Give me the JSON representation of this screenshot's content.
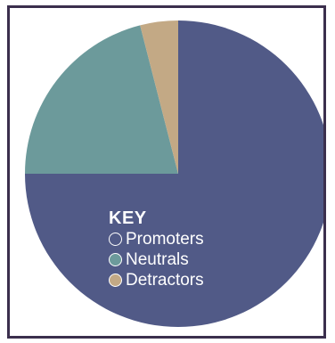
{
  "chart_data": {
    "type": "pie",
    "title": "",
    "slices": [
      {
        "label": "Promoters",
        "value": 75,
        "color": "#515a87"
      },
      {
        "label": "Neutrals",
        "value": 21,
        "color": "#6c9a9b"
      },
      {
        "label": "Detractors",
        "value": 4,
        "color": "#c3a985"
      }
    ],
    "start_angle_deg": 0,
    "direction": "clockwise",
    "legend": {
      "title": "KEY",
      "placement": "inside-lower-left",
      "items": [
        {
          "label": "Promoters",
          "swatch": "#ffffff",
          "outline_only": true
        },
        {
          "label": "Neutrals",
          "swatch": "#6c9a9b",
          "outline_only": false
        },
        {
          "label": "Detractors",
          "swatch": "#c3a985",
          "outline_only": false
        }
      ]
    }
  }
}
